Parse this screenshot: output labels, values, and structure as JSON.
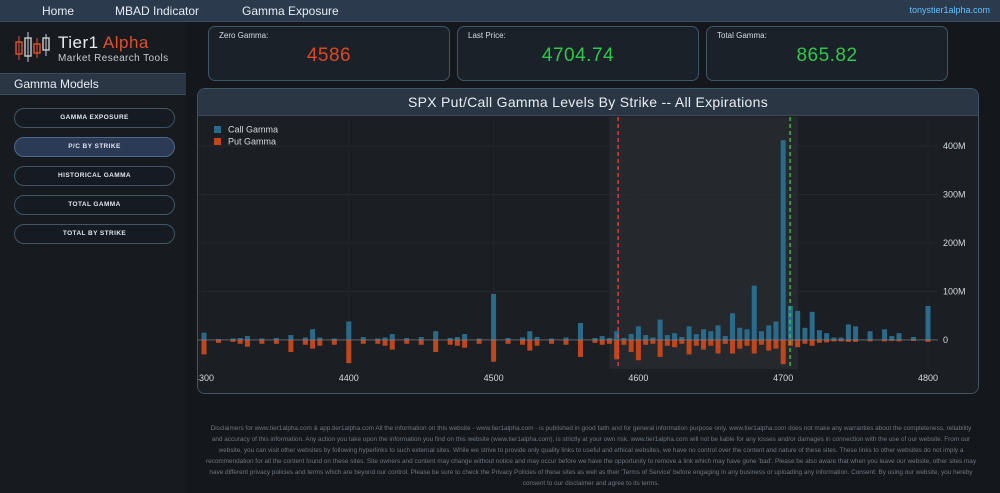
{
  "nav": {
    "items": [
      "Home",
      "MBAD Indicator",
      "Gamma Exposure"
    ],
    "user": "tonystier1alpha.com"
  },
  "logo": {
    "title_main": "Tier1",
    "title_accent": "Alpha",
    "subtitle": "Market Research Tools"
  },
  "sidebar": {
    "section_title": "Gamma Models",
    "buttons": [
      "GAMMA EXPOSURE",
      "P/C BY STRIKE",
      "HISTORICAL GAMMA",
      "TOTAL GAMMA",
      "TOTAL BY STRIKE"
    ],
    "active_index": 1
  },
  "cards": [
    {
      "label": "Zero Gamma:",
      "value": "4586",
      "color": "#e2461f"
    },
    {
      "label": "Last Price:",
      "value": "4704.74",
      "color": "#2ec94a"
    },
    {
      "label": "Total Gamma:",
      "value": "865.82",
      "color": "#2ec94a"
    }
  ],
  "chart_data": {
    "type": "bar",
    "title": "SPX Put/Call Gamma Levels By Strike -- All Expirations",
    "xlim": [
      4300,
      4800
    ],
    "ylim": [
      -60,
      460
    ],
    "x_ticks": [
      4300,
      4400,
      4500,
      4600,
      4700,
      4800
    ],
    "x_tick_labels": [
      "4300",
      "4400",
      "4500",
      "4600",
      "4700",
      "4800"
    ],
    "y_ticks": [
      0,
      100,
      200,
      300,
      400
    ],
    "y_tick_labels": [
      "0",
      "100M",
      "200M",
      "300M",
      "400M"
    ],
    "y_axis_side": "right",
    "legend_position": "top-left",
    "colors": {
      "call": "#2a6b8c",
      "put": "#c2461c",
      "zero_gamma_line": "#ff3b3b",
      "price_line": "#39d22f"
    },
    "highlight_range": [
      4580,
      4710
    ],
    "zero_gamma_level": 4586,
    "last_price_level": 4704.74,
    "series": [
      {
        "name": "Call Gamma",
        "x": [
          4300,
          4310,
          4320,
          4325,
          4330,
          4340,
          4350,
          4360,
          4370,
          4375,
          4380,
          4390,
          4400,
          4410,
          4420,
          4425,
          4430,
          4440,
          4450,
          4460,
          4470,
          4475,
          4480,
          4490,
          4500,
          4510,
          4520,
          4525,
          4530,
          4540,
          4550,
          4560,
          4570,
          4575,
          4580,
          4585,
          4590,
          4595,
          4600,
          4605,
          4610,
          4615,
          4620,
          4625,
          4630,
          4635,
          4640,
          4645,
          4650,
          4655,
          4660,
          4665,
          4670,
          4675,
          4680,
          4685,
          4690,
          4695,
          4700,
          4705,
          4710,
          4715,
          4720,
          4725,
          4730,
          4735,
          4740,
          4745,
          4750,
          4760,
          4770,
          4775,
          4780,
          4790,
          4800
        ],
        "values": [
          15,
          2,
          3,
          4,
          8,
          3,
          4,
          10,
          5,
          22,
          5,
          3,
          38,
          6,
          3,
          5,
          12,
          4,
          6,
          18,
          4,
          6,
          12,
          3,
          95,
          4,
          5,
          18,
          6,
          3,
          5,
          35,
          4,
          8,
          4,
          18,
          4,
          12,
          28,
          10,
          5,
          42,
          10,
          14,
          6,
          28,
          12,
          22,
          18,
          30,
          8,
          55,
          25,
          22,
          112,
          18,
          30,
          38,
          412,
          70,
          60,
          25,
          58,
          20,
          14,
          5,
          5,
          32,
          28,
          18,
          22,
          8,
          14,
          6,
          70
        ]
      },
      {
        "name": "Put Gamma",
        "x": [
          4300,
          4310,
          4320,
          4325,
          4330,
          4340,
          4350,
          4360,
          4370,
          4375,
          4380,
          4390,
          4400,
          4410,
          4420,
          4425,
          4430,
          4440,
          4450,
          4460,
          4470,
          4475,
          4480,
          4490,
          4500,
          4510,
          4520,
          4525,
          4530,
          4540,
          4550,
          4560,
          4570,
          4575,
          4580,
          4585,
          4590,
          4595,
          4600,
          4605,
          4610,
          4615,
          4620,
          4625,
          4630,
          4635,
          4640,
          4645,
          4650,
          4655,
          4660,
          4665,
          4670,
          4675,
          4680,
          4685,
          4690,
          4695,
          4700,
          4705,
          4710,
          4715,
          4720,
          4725,
          4730,
          4735,
          4740,
          4745,
          4750,
          4760,
          4770,
          4775,
          4780,
          4790,
          4800
        ],
        "values": [
          -30,
          -6,
          -4,
          -8,
          -14,
          -8,
          -8,
          -25,
          -10,
          -18,
          -12,
          -10,
          -48,
          -8,
          -8,
          -12,
          -20,
          -8,
          -10,
          -25,
          -10,
          -12,
          -16,
          -8,
          -45,
          -8,
          -10,
          -22,
          -12,
          -8,
          -10,
          -35,
          -6,
          -10,
          -8,
          -40,
          -10,
          -25,
          -42,
          -10,
          -8,
          -35,
          -12,
          -15,
          -8,
          -30,
          -12,
          -20,
          -12,
          -28,
          -8,
          -28,
          -18,
          -12,
          -28,
          -10,
          -22,
          -18,
          -50,
          -12,
          -15,
          -8,
          -12,
          -6,
          -5,
          -3,
          -3,
          -4,
          -4,
          -3,
          -3,
          -2,
          -3,
          -2,
          -4
        ]
      }
    ]
  },
  "disclaimer": "Disclaimers for www.tier1alpha.com & app.tier1alpha.com All the information on this website - www.tier1alpha.com - is published in good faith and for general information purpose only. www.tier1alpha.com does not make any warranties about the completeness, reliability and accuracy of this information. Any action you take upon the information you find on this website (www.tier1alpha.com), is strictly at your own risk. www.tier1alpha.com will not be liable for any losses and/or damages in connection with the use of our website. From our website, you can visit other websites by following hyperlinks to such external sites. While we strive to provide only quality links to useful and ethical websites, we have no control over the content and nature of these sites. These links to other websites do not imply a recommendation for all the content found on these sites. Site owners and content may change without notice and may occur before we have the opportunity to remove a link which may have gone 'bad'. Please be also aware that when you leave our website, other sites may have different privacy policies and terms which are beyond our control. Please be sure to check the Privacy Policies of these sites as well as their 'Terms of Service' before engaging in any business or uploading any information. Consent: By using our website, you hereby consent to our disclaimer and agree to its terms."
}
